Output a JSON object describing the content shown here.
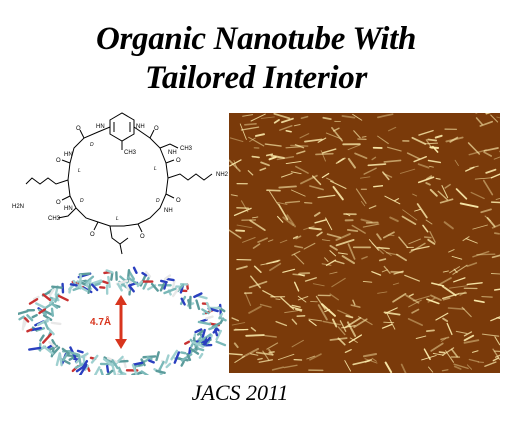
{
  "slide": {
    "title_line1": "Organic Nanotube With",
    "title_line2": "Tailored Interior",
    "citation": "JACS 2011"
  },
  "structure": {
    "group_labels": [
      "NH2",
      "NH2",
      "H2N",
      "CH3",
      "CH3",
      "CH3",
      "HN",
      "NH",
      "HN",
      "NH",
      "HN",
      "NH",
      "O",
      "O",
      "O",
      "O",
      "O",
      "O",
      "O",
      "O"
    ],
    "stereo_labels": [
      "D",
      "L",
      "D",
      "L",
      "D",
      "L"
    ]
  },
  "molecule_model": {
    "pore_label": "4.7Å",
    "arrow_color": "#d8351e"
  },
  "afm_image": {
    "background_color": "#7a3a0a",
    "fiber_color": "#fff0b0"
  }
}
